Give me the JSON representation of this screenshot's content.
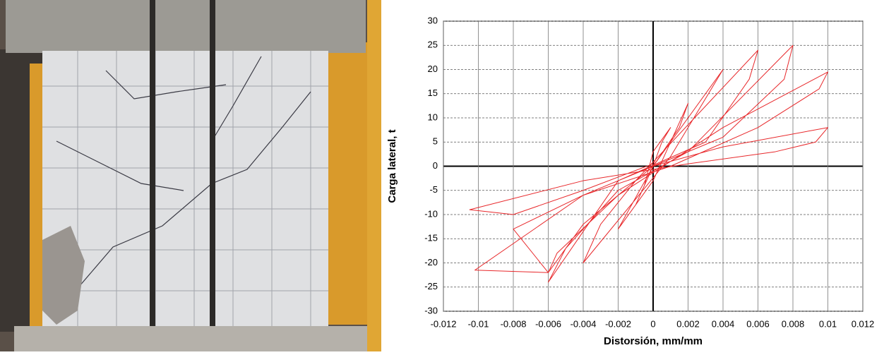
{
  "chart_data": {
    "type": "line",
    "xlabel": "Distorsión, mm/mm",
    "ylabel": "Carga lateral, t",
    "x": [
      0,
      0.0005,
      0.001,
      0,
      -0.0005,
      -0.001,
      0,
      0.002,
      0.0015,
      0,
      -0.002,
      -0.001,
      0,
      0.004,
      0.003,
      0.001,
      -0.004,
      -0.003,
      -0.001,
      0.006,
      0.0055,
      0.003,
      -0.002,
      -0.006,
      -0.005,
      -0.002,
      0.002,
      0.008,
      0.0075,
      0.004,
      0,
      -0.004,
      -0.008,
      -0.006,
      -0.0055,
      -0.002,
      0.004,
      0.01,
      0.0095,
      0.006,
      0.001,
      -0.004,
      -0.0102,
      -0.006,
      -0.004,
      0,
      0.004,
      0.01,
      0.0093,
      0.007,
      0.002,
      -0.004,
      -0.0105,
      -0.008,
      -0.004,
      0
    ],
    "values": [
      0,
      5,
      8,
      3,
      -4,
      -8,
      -3,
      13,
      8,
      0,
      -13,
      -8,
      0,
      20,
      14,
      2,
      -20,
      -12,
      -3,
      24,
      18,
      5,
      -3,
      -24,
      -17,
      -5,
      3,
      25,
      18,
      6,
      0,
      -6,
      -13,
      -22,
      -18,
      -6,
      8,
      19.5,
      16,
      8,
      0,
      -6,
      -21.5,
      -22,
      -12,
      0,
      4,
      8,
      5,
      3,
      0.5,
      -3,
      -9,
      -10,
      -5,
      0.5
    ],
    "color": "#e8282b",
    "xlim": [
      -0.012,
      0.012
    ],
    "xticks": [
      -0.012,
      -0.01,
      -0.008,
      -0.006,
      -0.004,
      -0.002,
      0,
      0.002,
      0.004,
      0.006,
      0.008,
      0.01,
      0.012
    ],
    "ylim": [
      -30,
      30
    ],
    "yticks": [
      -30,
      -25,
      -20,
      -15,
      -10,
      -5,
      0,
      5,
      10,
      15,
      20,
      25,
      30
    ],
    "grid": true
  }
}
